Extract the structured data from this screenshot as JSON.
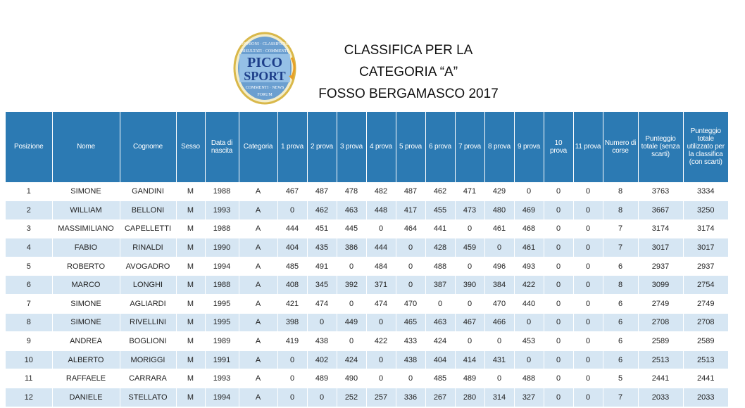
{
  "logo": {
    "line1": "PICO",
    "line2": "SPORT"
  },
  "title": {
    "line1": "CLASSIFICA PER LA",
    "line2": "CATEGORIA “A”",
    "line3": "FOSSO BERGAMASCO 2017"
  },
  "table": {
    "headers": [
      "Posizione",
      "Nome",
      "Cognome",
      "Sesso",
      "Data di nascita",
      "Categoria",
      "1 prova",
      "2 prova",
      "3 prova",
      "4 prova",
      "5 prova",
      "6 prova",
      "7 prova",
      "8 prova",
      "9 prova",
      "10 prova",
      "11 prova",
      "Numero di corse",
      "Punteggio totale (senza scarti)",
      "Punteggio totale utilizzato per la classifica (con scarti)"
    ],
    "rows": [
      [
        "1",
        "SIMONE",
        "GANDINI",
        "M",
        "1988",
        "A",
        "467",
        "487",
        "478",
        "482",
        "487",
        "462",
        "471",
        "429",
        "0",
        "0",
        "0",
        "8",
        "3763",
        "3334"
      ],
      [
        "2",
        "WILLIAM",
        "BELLONI",
        "M",
        "1993",
        "A",
        "0",
        "462",
        "463",
        "448",
        "417",
        "455",
        "473",
        "480",
        "469",
        "0",
        "0",
        "8",
        "3667",
        "3250"
      ],
      [
        "3",
        "MASSIMILIANO",
        "CAPELLETTI",
        "M",
        "1988",
        "A",
        "444",
        "451",
        "445",
        "0",
        "464",
        "441",
        "0",
        "461",
        "468",
        "0",
        "0",
        "7",
        "3174",
        "3174"
      ],
      [
        "4",
        "FABIO",
        "RINALDI",
        "M",
        "1990",
        "A",
        "404",
        "435",
        "386",
        "444",
        "0",
        "428",
        "459",
        "0",
        "461",
        "0",
        "0",
        "7",
        "3017",
        "3017"
      ],
      [
        "5",
        "ROBERTO",
        "AVOGADRO",
        "M",
        "1994",
        "A",
        "485",
        "491",
        "0",
        "484",
        "0",
        "488",
        "0",
        "496",
        "493",
        "0",
        "0",
        "6",
        "2937",
        "2937"
      ],
      [
        "6",
        "MARCO",
        "LONGHI",
        "M",
        "1988",
        "A",
        "408",
        "345",
        "392",
        "371",
        "0",
        "387",
        "390",
        "384",
        "422",
        "0",
        "0",
        "8",
        "3099",
        "2754"
      ],
      [
        "7",
        "SIMONE",
        "AGLIARDI",
        "M",
        "1995",
        "A",
        "421",
        "474",
        "0",
        "474",
        "470",
        "0",
        "0",
        "470",
        "440",
        "0",
        "0",
        "6",
        "2749",
        "2749"
      ],
      [
        "8",
        "SIMONE",
        "RIVELLINI",
        "M",
        "1995",
        "A",
        "398",
        "0",
        "449",
        "0",
        "465",
        "463",
        "467",
        "466",
        "0",
        "0",
        "0",
        "6",
        "2708",
        "2708"
      ],
      [
        "9",
        "ANDREA",
        "BOGLIONI",
        "M",
        "1989",
        "A",
        "419",
        "438",
        "0",
        "422",
        "433",
        "424",
        "0",
        "0",
        "453",
        "0",
        "0",
        "6",
        "2589",
        "2589"
      ],
      [
        "10",
        "ALBERTO",
        "MORIGGI",
        "M",
        "1991",
        "A",
        "0",
        "402",
        "424",
        "0",
        "438",
        "404",
        "414",
        "431",
        "0",
        "0",
        "0",
        "6",
        "2513",
        "2513"
      ],
      [
        "11",
        "RAFFAELE",
        "CARRARA",
        "M",
        "1993",
        "A",
        "0",
        "489",
        "490",
        "0",
        "0",
        "485",
        "489",
        "0",
        "488",
        "0",
        "0",
        "5",
        "2441",
        "2441"
      ],
      [
        "12",
        "DANIELE",
        "STELLATO",
        "M",
        "1994",
        "A",
        "0",
        "0",
        "252",
        "257",
        "336",
        "267",
        "280",
        "314",
        "327",
        "0",
        "0",
        "7",
        "2033",
        "2033"
      ]
    ]
  }
}
